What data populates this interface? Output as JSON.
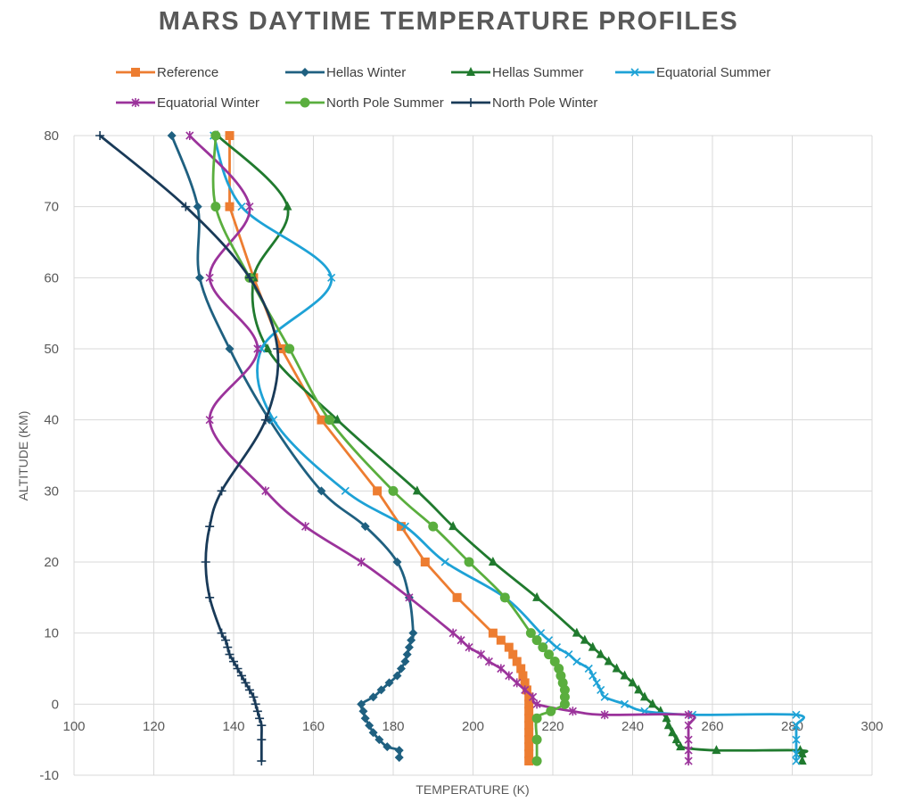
{
  "chart_data": {
    "type": "line",
    "title": "MARS DAYTIME TEMPERATURE PROFILES",
    "xlabel": "TEMPERATURE (K)",
    "ylabel": "ALTITUDE (KM)",
    "xlim": [
      100,
      300
    ],
    "ylim": [
      -10,
      80
    ],
    "xticks": [
      "100",
      "120",
      "140",
      "160",
      "180",
      "200",
      "220",
      "240",
      "260",
      "280",
      "300"
    ],
    "yticks": [
      "-10",
      "0",
      "10",
      "20",
      "30",
      "40",
      "50",
      "60",
      "70",
      "80"
    ],
    "grid": true,
    "legend_position": "top",
    "series": [
      {
        "name": "Reference",
        "color": "#ed7d31",
        "marker": "square",
        "smooth": false,
        "points": [
          [
            139,
            80
          ],
          [
            139,
            70
          ],
          [
            145,
            60
          ],
          [
            152,
            50
          ],
          [
            162,
            40
          ],
          [
            176,
            30
          ],
          [
            182,
            25
          ],
          [
            188,
            20
          ],
          [
            196,
            15
          ],
          [
            205,
            10
          ],
          [
            207,
            9
          ],
          [
            209,
            8
          ],
          [
            210,
            7
          ],
          [
            211,
            6
          ],
          [
            212,
            5
          ],
          [
            212.5,
            4
          ],
          [
            213,
            3
          ],
          [
            213.5,
            2
          ],
          [
            214,
            1
          ],
          [
            214,
            0
          ],
          [
            214,
            -1
          ],
          [
            214,
            -2
          ],
          [
            214,
            -3
          ],
          [
            214,
            -4
          ],
          [
            214,
            -5
          ],
          [
            214,
            -6
          ],
          [
            214,
            -7
          ],
          [
            214,
            -8
          ]
        ]
      },
      {
        "name": "Hellas Winter",
        "color": "#1f6080",
        "marker": "diamond",
        "smooth": true,
        "points": [
          [
            124.5,
            80
          ],
          [
            131,
            70
          ],
          [
            131.5,
            60
          ],
          [
            139,
            50
          ],
          [
            149,
            40
          ],
          [
            162,
            30
          ],
          [
            173,
            25
          ],
          [
            181,
            20
          ],
          [
            184,
            15
          ],
          [
            185,
            10
          ],
          [
            184.5,
            9
          ],
          [
            184,
            8
          ],
          [
            183.5,
            7
          ],
          [
            183,
            6
          ],
          [
            182,
            5
          ],
          [
            181,
            4
          ],
          [
            179,
            3
          ],
          [
            177,
            2
          ],
          [
            175,
            1
          ],
          [
            172,
            0
          ],
          [
            172.5,
            -1
          ],
          [
            173,
            -2
          ],
          [
            174,
            -3
          ],
          [
            175,
            -4
          ],
          [
            176.5,
            -5
          ],
          [
            178.5,
            -6
          ],
          [
            181.5,
            -6.5
          ],
          [
            181.5,
            -7.5
          ]
        ]
      },
      {
        "name": "Hellas Summer",
        "color": "#207a2e",
        "marker": "triangle",
        "smooth": true,
        "points": [
          [
            136,
            80
          ],
          [
            153.5,
            70
          ],
          [
            145,
            60
          ],
          [
            148.5,
            50
          ],
          [
            166,
            40
          ],
          [
            186,
            30
          ],
          [
            195,
            25
          ],
          [
            205,
            20
          ],
          [
            216,
            15
          ],
          [
            226,
            10
          ],
          [
            228,
            9
          ],
          [
            230,
            8
          ],
          [
            232,
            7
          ],
          [
            234,
            6
          ],
          [
            236,
            5
          ],
          [
            238,
            4
          ],
          [
            240,
            3
          ],
          [
            241.5,
            2
          ],
          [
            243,
            1
          ],
          [
            245,
            0
          ],
          [
            247,
            -1
          ],
          [
            248.5,
            -2
          ],
          [
            249,
            -3
          ],
          [
            250,
            -4
          ],
          [
            251,
            -5
          ],
          [
            252,
            -6
          ],
          [
            261,
            -6.5
          ],
          [
            282,
            -6.5
          ],
          [
            282.5,
            -7
          ],
          [
            282.5,
            -8
          ]
        ]
      },
      {
        "name": "Equatorial Summer",
        "color": "#1ea2d6",
        "marker": "x",
        "smooth": true,
        "points": [
          [
            135,
            80
          ],
          [
            142,
            70
          ],
          [
            164.5,
            60
          ],
          [
            147,
            50
          ],
          [
            150,
            40
          ],
          [
            168,
            30
          ],
          [
            183,
            25
          ],
          [
            193,
            20
          ],
          [
            208,
            15
          ],
          [
            217,
            10
          ],
          [
            219,
            9
          ],
          [
            221,
            8
          ],
          [
            224,
            7
          ],
          [
            226,
            6
          ],
          [
            229,
            5
          ],
          [
            230,
            4
          ],
          [
            231,
            3
          ],
          [
            232,
            2
          ],
          [
            233,
            1
          ],
          [
            238,
            0
          ],
          [
            243,
            -1
          ],
          [
            255,
            -1.5
          ],
          [
            281,
            -1.5
          ],
          [
            281,
            -3
          ],
          [
            281,
            -5
          ],
          [
            281,
            -7
          ],
          [
            281,
            -8
          ]
        ]
      },
      {
        "name": "Equatorial Winter",
        "color": "#9b339b",
        "marker": "star",
        "smooth": true,
        "points": [
          [
            129,
            80
          ],
          [
            144,
            70
          ],
          [
            134,
            60
          ],
          [
            146,
            50
          ],
          [
            134,
            40
          ],
          [
            148,
            30
          ],
          [
            158,
            25
          ],
          [
            172,
            20
          ],
          [
            184,
            15
          ],
          [
            195,
            10
          ],
          [
            197,
            9
          ],
          [
            199,
            8
          ],
          [
            202,
            7
          ],
          [
            204,
            6
          ],
          [
            207,
            5
          ],
          [
            209,
            4
          ],
          [
            211,
            3
          ],
          [
            213,
            2
          ],
          [
            215,
            1
          ],
          [
            216,
            0
          ],
          [
            225,
            -1
          ],
          [
            233,
            -1.5
          ],
          [
            254,
            -1.5
          ],
          [
            254,
            -3
          ],
          [
            254,
            -5
          ],
          [
            254,
            -6.5
          ],
          [
            254,
            -8
          ]
        ]
      },
      {
        "name": "North Pole Summer",
        "color": "#5aae3e",
        "marker": "circle",
        "smooth": true,
        "points": [
          [
            135.5,
            80
          ],
          [
            135.5,
            70
          ],
          [
            144,
            60
          ],
          [
            154,
            50
          ],
          [
            164,
            40
          ],
          [
            180,
            30
          ],
          [
            190,
            25
          ],
          [
            199,
            20
          ],
          [
            208,
            15
          ],
          [
            214.5,
            10
          ],
          [
            216,
            9
          ],
          [
            217.5,
            8
          ],
          [
            219,
            7
          ],
          [
            220.5,
            6
          ],
          [
            221.5,
            5
          ],
          [
            222,
            4
          ],
          [
            222.5,
            3
          ],
          [
            223,
            2
          ],
          [
            223,
            1
          ],
          [
            223,
            0
          ],
          [
            219.5,
            -1
          ],
          [
            216,
            -2
          ],
          [
            216,
            -5
          ],
          [
            216,
            -8
          ]
        ]
      },
      {
        "name": "North Pole Winter",
        "color": "#193a58",
        "marker": "plus",
        "smooth": true,
        "points": [
          [
            106.5,
            80
          ],
          [
            128,
            70
          ],
          [
            144,
            60
          ],
          [
            151,
            50
          ],
          [
            148,
            40
          ],
          [
            137,
            30
          ],
          [
            134,
            25
          ],
          [
            133,
            20
          ],
          [
            134,
            15
          ],
          [
            137,
            10
          ],
          [
            138,
            9
          ],
          [
            138.5,
            8
          ],
          [
            139,
            7
          ],
          [
            140,
            6
          ],
          [
            141,
            5
          ],
          [
            142,
            4
          ],
          [
            143,
            3
          ],
          [
            144,
            2
          ],
          [
            145,
            1
          ],
          [
            145.5,
            0
          ],
          [
            146,
            -1
          ],
          [
            146.5,
            -2
          ],
          [
            147,
            -3
          ],
          [
            147,
            -5
          ],
          [
            147,
            -8
          ]
        ]
      }
    ]
  }
}
